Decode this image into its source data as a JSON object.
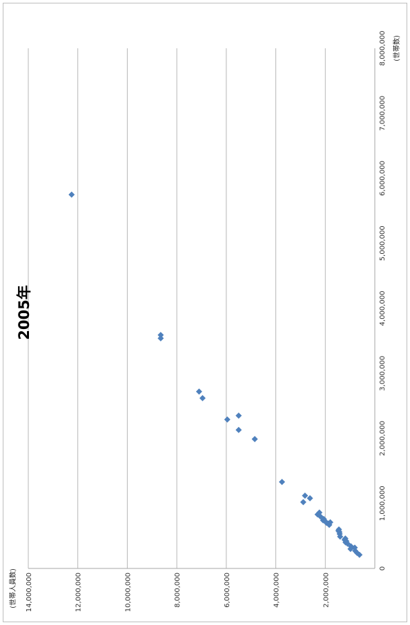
{
  "chart_data": {
    "type": "scatter",
    "title": "2005年",
    "xlabel": "(世帯数)",
    "ylabel": "(世帯人員数)",
    "xlim": [
      0,
      8000000
    ],
    "ylim": [
      0,
      14000000
    ],
    "x_ticks": [
      "0",
      "1,000,000",
      "2,000,000",
      "3,000,000",
      "4,000,000",
      "5,000,000",
      "6,000,000",
      "7,000,000",
      "8,000,000"
    ],
    "y_ticks": [
      "2,000,000",
      "4,000,000",
      "6,000,000",
      "8,000,000",
      "10,000,000",
      "12,000,000",
      "14,000,000"
    ],
    "grid": true,
    "marker_color": "#4f81bd",
    "orientation": "rotated-90-ccw",
    "points": [
      {
        "x": 5750000,
        "y": 12250000
      },
      {
        "x": 3590000,
        "y": 8650000
      },
      {
        "x": 3540000,
        "y": 8650000
      },
      {
        "x": 2720000,
        "y": 7100000
      },
      {
        "x": 2620000,
        "y": 6960000
      },
      {
        "x": 2290000,
        "y": 5960000
      },
      {
        "x": 2350000,
        "y": 5500000
      },
      {
        "x": 2130000,
        "y": 5500000
      },
      {
        "x": 1990000,
        "y": 4850000
      },
      {
        "x": 1330000,
        "y": 3750000
      },
      {
        "x": 1120000,
        "y": 2820000
      },
      {
        "x": 1080000,
        "y": 2620000
      },
      {
        "x": 1020000,
        "y": 2890000
      },
      {
        "x": 860000,
        "y": 2240000
      },
      {
        "x": 830000,
        "y": 2310000
      },
      {
        "x": 800000,
        "y": 2200000
      },
      {
        "x": 760000,
        "y": 2060000
      },
      {
        "x": 740000,
        "y": 2090000
      },
      {
        "x": 720000,
        "y": 1990000
      },
      {
        "x": 710000,
        "y": 1800000
      },
      {
        "x": 700000,
        "y": 1950000
      },
      {
        "x": 690000,
        "y": 1880000
      },
      {
        "x": 670000,
        "y": 1840000
      },
      {
        "x": 600000,
        "y": 1450000
      },
      {
        "x": 580000,
        "y": 1470000
      },
      {
        "x": 560000,
        "y": 1430000
      },
      {
        "x": 530000,
        "y": 1420000
      },
      {
        "x": 490000,
        "y": 1400000
      },
      {
        "x": 460000,
        "y": 1190000
      },
      {
        "x": 440000,
        "y": 1220000
      },
      {
        "x": 420000,
        "y": 1150000
      },
      {
        "x": 400000,
        "y": 1180000
      },
      {
        "x": 380000,
        "y": 1100000
      },
      {
        "x": 340000,
        "y": 960000
      },
      {
        "x": 320000,
        "y": 810000
      },
      {
        "x": 300000,
        "y": 980000
      },
      {
        "x": 270000,
        "y": 790000
      },
      {
        "x": 240000,
        "y": 720000
      },
      {
        "x": 210000,
        "y": 620000
      }
    ]
  }
}
